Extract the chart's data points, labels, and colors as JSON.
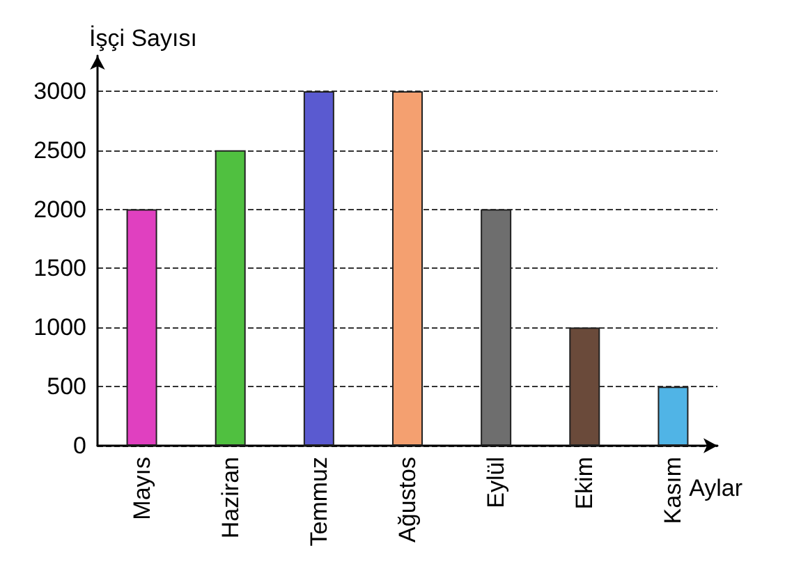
{
  "chart_data": {
    "type": "bar",
    "xlabel": "Aylar",
    "ylabel": "İşçi Sayısı",
    "categories": [
      "Mayıs",
      "Haziran",
      "Temmuz",
      "Ağustos",
      "Eylül",
      "Ekim",
      "Kasım"
    ],
    "values": [
      2000,
      2500,
      3000,
      3000,
      2000,
      1000,
      500
    ],
    "colors": [
      "#e040c0",
      "#50c040",
      "#5a5ad0",
      "#f4a070",
      "#6e6e6e",
      "#6a4a3a",
      "#50b4e6"
    ],
    "ylim": [
      0,
      3300
    ],
    "yticks": [
      0,
      500,
      1000,
      1500,
      2000,
      2500,
      3000
    ],
    "grid": "y"
  }
}
